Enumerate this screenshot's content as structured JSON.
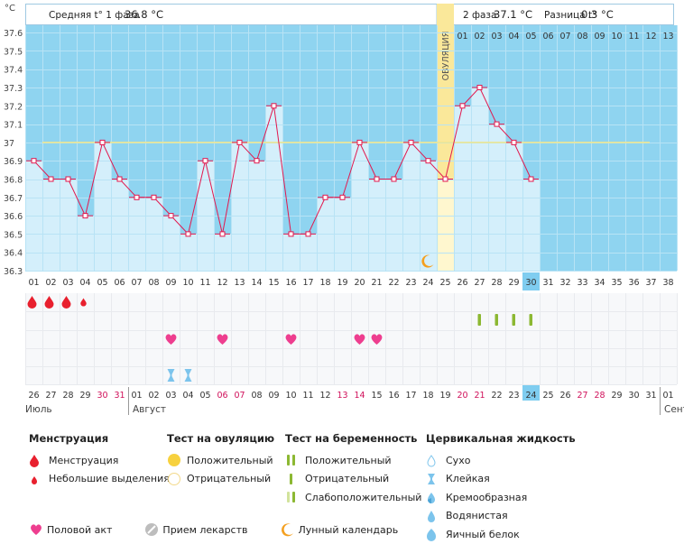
{
  "header": {
    "phase1_label": "Средняя t° 1 фаза",
    "phase1_value": "36.8 °C",
    "phase2_label": "2 фаза",
    "phase2_value": "37.1 °C",
    "diff_label": "Разница t°",
    "diff_value": "0.3 °C"
  },
  "chart_data": {
    "type": "line",
    "ylabel": "°C",
    "ylim": [
      36.3,
      37.6
    ],
    "y_ticks": [
      "36.3",
      "36.4",
      "36.5",
      "36.6",
      "36.7",
      "36.8",
      "36.9",
      "37",
      "37.1",
      "37.2",
      "37.3",
      "37.4",
      "37.5",
      "37.6"
    ],
    "cycle_days": [
      "01",
      "02",
      "03",
      "04",
      "05",
      "06",
      "07",
      "08",
      "09",
      "10",
      "11",
      "12",
      "13",
      "14",
      "15",
      "16",
      "17",
      "18",
      "19",
      "20",
      "21",
      "22",
      "23",
      "24",
      "25",
      "26",
      "27",
      "28",
      "29",
      "30",
      "31",
      "32",
      "33",
      "34",
      "35",
      "36",
      "37",
      "38"
    ],
    "series": [
      {
        "values": [
          36.9,
          36.8,
          36.8,
          36.6,
          37.0,
          36.8,
          36.7,
          36.7,
          36.6,
          36.5,
          36.9,
          36.5,
          37.0,
          36.9,
          37.2,
          36.5,
          36.5,
          36.7,
          36.7,
          37.0,
          36.8,
          36.8,
          37.0,
          36.9,
          36.8,
          37.2,
          37.3,
          37.1,
          37.0,
          36.8
        ]
      }
    ],
    "coverline": 37.0,
    "ovulation_day": 25,
    "ovulation_label": "ОВУЛЯЦИЯ",
    "phase2_day_labels": [
      "01",
      "02",
      "03",
      "04",
      "05",
      "06",
      "07",
      "08",
      "09",
      "10",
      "11",
      "12",
      "13"
    ],
    "current_cycle_day": 30,
    "calendar_dates": [
      "26",
      "27",
      "28",
      "29",
      "30",
      "31",
      "01",
      "02",
      "03",
      "04",
      "05",
      "06",
      "07",
      "08",
      "09",
      "10",
      "11",
      "12",
      "13",
      "14",
      "15",
      "16",
      "17",
      "18",
      "19",
      "20",
      "21",
      "22",
      "23",
      "24",
      "25",
      "26",
      "27",
      "28",
      "29",
      "30",
      "31",
      "01"
    ],
    "weekend_date_indices": [
      4,
      5,
      11,
      12,
      18,
      19,
      25,
      26,
      32,
      33
    ],
    "current_date_index": 29,
    "months": [
      {
        "name": "Июль",
        "index": 0
      },
      {
        "name": "Август",
        "index": 6
      },
      {
        "name": "Сент",
        "index": 37
      }
    ],
    "menstruation": [
      {
        "index": 0,
        "kind": "full"
      },
      {
        "index": 1,
        "kind": "full"
      },
      {
        "index": 2,
        "kind": "full"
      },
      {
        "index": 3,
        "kind": "light"
      }
    ],
    "pregnancy_tests": [
      {
        "index": 26,
        "result": "negative"
      },
      {
        "index": 27,
        "result": "negative"
      },
      {
        "index": 28,
        "result": "negative"
      },
      {
        "index": 29,
        "result": "negative"
      }
    ],
    "intercourse": [
      8,
      11,
      15,
      19,
      20
    ],
    "cervical_fluid": [
      {
        "index": 8,
        "kind": "sticky"
      },
      {
        "index": 9,
        "kind": "sticky"
      }
    ],
    "moon_day_index": 23
  },
  "legend": {
    "menstruation_title": "Менструация",
    "menstruation_items": [
      "Менструация",
      "Небольшие выделения"
    ],
    "ovtest_title": "Тест на овуляцию",
    "ovtest_items": [
      "Положительный",
      "Отрицательный"
    ],
    "pregtest_title": "Тест на беременность",
    "pregtest_items": [
      "Положительный",
      "Отрицательный",
      "Слабоположительный"
    ],
    "cervical_title": "Цервикальная жидкость",
    "cervical_items": [
      "Сухо",
      "Клейкая",
      "Кремообразная",
      "Водянистая",
      "Яичный белок"
    ],
    "bottom_items": [
      "Половой акт",
      "Прием лекарств",
      "Лунный календарь"
    ]
  },
  "colors": {
    "bg_blue": "#8fd4f0",
    "bar_fill": "#d4effb",
    "line": "#e2184e",
    "coverline": "#f0e68c",
    "ovulation": "#fae89a",
    "menstruation": "#e8202e",
    "heart": "#ee3e8f",
    "preg_test": "#8cb832",
    "cervical": "#7cc4ec",
    "moon": "#f4a020",
    "weekend": "#d0105a"
  }
}
